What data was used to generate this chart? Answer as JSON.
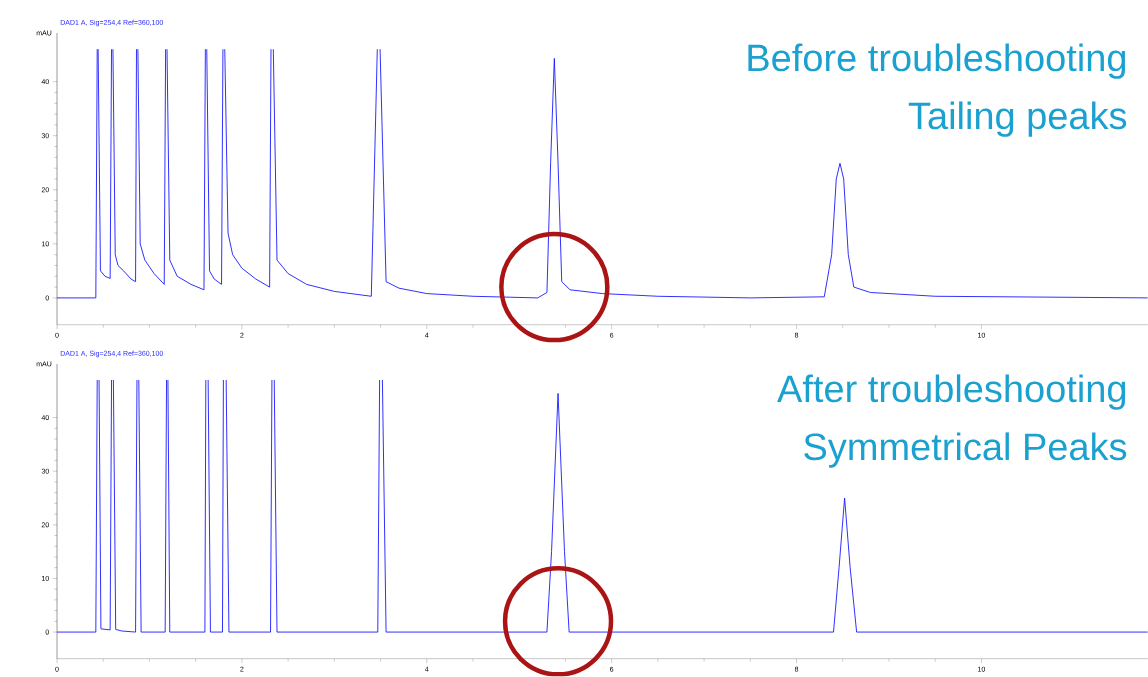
{
  "chart_data": [
    {
      "type": "line",
      "title": "Before troubleshooting",
      "subtitle": "Tailing peaks",
      "ylabel": "mAU",
      "annotations": [
        "DAD1 A, Sig=254,4 Ref=360,100"
      ],
      "x": [
        0,
        0.42,
        0.435,
        0.44,
        0.445,
        0.47,
        0.52,
        0.575,
        0.59,
        0.597,
        0.605,
        0.63,
        0.66,
        0.72,
        0.8,
        0.85,
        0.86,
        0.867,
        0.875,
        0.9,
        0.95,
        1.05,
        1.16,
        1.175,
        1.182,
        1.19,
        1.22,
        1.3,
        1.45,
        1.59,
        1.605,
        1.612,
        1.62,
        1.65,
        1.7,
        1.78,
        1.795,
        1.805,
        1.815,
        1.85,
        1.9,
        2.0,
        2.15,
        2.3,
        2.315,
        2.327,
        2.34,
        2.38,
        2.5,
        2.7,
        3.0,
        3.4,
        3.465,
        3.48,
        3.495,
        3.56,
        3.7,
        4.0,
        4.5,
        5.2,
        5.3,
        5.34,
        5.38,
        5.42,
        5.46,
        5.55,
        5.9,
        6.5,
        7.5,
        8.3,
        8.38,
        8.43,
        8.47,
        8.51,
        8.56,
        8.62,
        8.8,
        9.5,
        11.8
      ],
      "series": [
        {
          "color": "#1a1aff",
          "values": [
            0,
            0,
            46,
            null,
            46,
            5,
            4,
            3.6,
            46,
            null,
            46,
            8,
            6,
            5,
            3.5,
            3,
            46,
            null,
            46,
            10,
            7,
            4.5,
            2.5,
            46,
            null,
            46,
            7,
            4,
            2.5,
            1.5,
            46,
            null,
            46,
            5,
            3.5,
            2.5,
            46,
            null,
            46,
            12,
            8,
            5.5,
            3.5,
            2,
            46,
            null,
            46,
            7,
            4.5,
            2.5,
            1.2,
            0.3,
            46,
            null,
            46,
            3,
            1.8,
            0.8,
            0.3,
            0,
            1,
            25,
            44.3,
            25,
            3,
            1.5,
            0.8,
            0.3,
            0,
            0.2,
            8,
            22,
            24.9,
            22,
            8,
            2,
            1,
            0.3,
            0
          ]
        }
      ],
      "xlim": [
        0,
        11.8
      ],
      "ylim": [
        -5,
        49
      ],
      "xticks": [
        0,
        2,
        4,
        6,
        8,
        10
      ],
      "yticks": [
        0,
        10,
        20,
        30,
        40
      ]
    },
    {
      "type": "line",
      "title": "After troubleshooting",
      "subtitle": "Symmetrical Peaks",
      "ylabel": "mAU",
      "annotations": [
        "DAD1 A, Sig=254,4 Ref=360,100"
      ],
      "x": [
        0,
        0.42,
        0.435,
        0.445,
        0.455,
        0.475,
        0.575,
        0.59,
        0.6,
        0.61,
        0.635,
        0.7,
        0.85,
        0.865,
        0.875,
        0.885,
        0.91,
        1.17,
        1.185,
        1.192,
        1.2,
        1.22,
        1.6,
        1.61,
        1.622,
        1.635,
        1.66,
        1.79,
        1.8,
        1.815,
        1.83,
        1.86,
        2.31,
        2.325,
        2.337,
        2.35,
        2.38,
        3.47,
        3.49,
        3.505,
        3.52,
        3.56,
        5.3,
        5.35,
        5.42,
        5.49,
        5.54,
        8.4,
        8.46,
        8.52,
        8.58,
        8.65,
        11.8
      ],
      "series": [
        {
          "color": "#1a1aff",
          "values": [
            0,
            0,
            47,
            null,
            47,
            0.6,
            0.4,
            47,
            null,
            47,
            0.5,
            0.2,
            0,
            47,
            null,
            47,
            0,
            0,
            47,
            null,
            47,
            0,
            0,
            47,
            null,
            47,
            0,
            0,
            47,
            null,
            47,
            0,
            0,
            47,
            null,
            47,
            0,
            0,
            47,
            null,
            47,
            0,
            0,
            15,
            44.5,
            15,
            0,
            0,
            12,
            25,
            12,
            0,
            0
          ]
        }
      ],
      "xlim": [
        0,
        11.8
      ],
      "ylim": [
        -5,
        50
      ],
      "xticks": [
        0,
        2,
        4,
        6,
        8,
        10
      ],
      "yticks": [
        0,
        10,
        20,
        30,
        40
      ]
    }
  ]
}
